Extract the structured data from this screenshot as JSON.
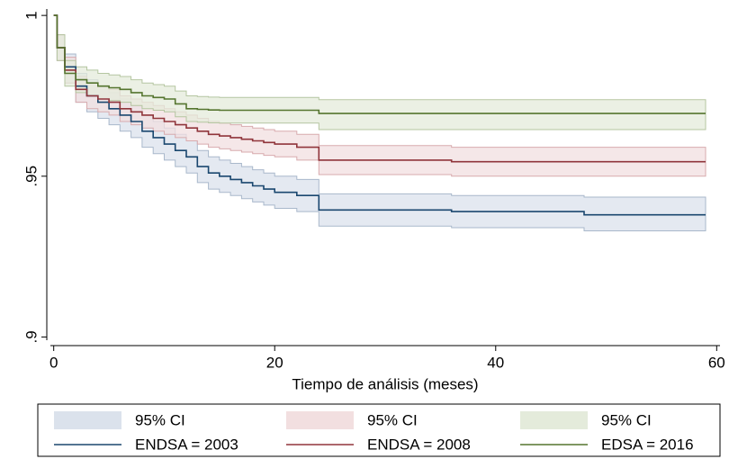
{
  "chart_data": {
    "type": "survival",
    "x_label": "Tiempo de análisis (meses)",
    "x": [
      0,
      0.3,
      1,
      2,
      3,
      4,
      5,
      6,
      7,
      8,
      9,
      10,
      11,
      12,
      13,
      14,
      15,
      16,
      17,
      18,
      19,
      20,
      22,
      24,
      36,
      48,
      59
    ],
    "xlim": [
      -0.3,
      60.3
    ],
    "xticks": [
      0,
      20,
      40,
      60
    ],
    "ylim": [
      0.899,
      1.002
    ],
    "yticks": [
      {
        "value": 0.9,
        "label": ".9"
      },
      {
        "value": 0.95,
        "label": ".95"
      },
      1
    ],
    "series": [
      {
        "name": "ENDSA = 2003",
        "color": "#1a476f",
        "ci_color": "#dbe2ec",
        "ci_edge": "#a9b8cb",
        "values": [
          1,
          0.99,
          0.984,
          0.978,
          0.975,
          0.973,
          0.971,
          0.969,
          0.967,
          0.964,
          0.962,
          0.96,
          0.958,
          0.956,
          0.953,
          0.951,
          0.95,
          0.949,
          0.948,
          0.947,
          0.946,
          0.945,
          0.944,
          0.9395,
          0.939,
          0.938,
          0.938
        ],
        "ci": {
          "name": "95% CI",
          "upper": [
            1,
            0.994,
            0.988,
            0.982,
            0.98,
            0.978,
            0.976,
            0.974,
            0.972,
            0.969,
            0.967,
            0.965,
            0.963,
            0.961,
            0.958,
            0.956,
            0.955,
            0.954,
            0.953,
            0.952,
            0.951,
            0.95,
            0.949,
            0.9445,
            0.944,
            0.9435,
            0.9435
          ],
          "lower": [
            1,
            0.986,
            0.979,
            0.973,
            0.97,
            0.968,
            0.966,
            0.964,
            0.962,
            0.959,
            0.957,
            0.955,
            0.953,
            0.951,
            0.948,
            0.946,
            0.945,
            0.944,
            0.943,
            0.942,
            0.941,
            0.94,
            0.939,
            0.9345,
            0.934,
            0.933,
            0.933
          ]
        }
      },
      {
        "name": "ENDSA = 2008",
        "color": "#90353b",
        "ci_color": "#f2dfe0",
        "ci_edge": "#d8abae",
        "values": [
          1,
          0.99,
          0.983,
          0.977,
          0.975,
          0.974,
          0.973,
          0.971,
          0.97,
          0.969,
          0.968,
          0.967,
          0.966,
          0.965,
          0.964,
          0.963,
          0.9625,
          0.962,
          0.9615,
          0.961,
          0.9605,
          0.96,
          0.959,
          0.955,
          0.9545,
          0.9545,
          0.9545
        ],
        "ci": {
          "name": "95% CI",
          "upper": [
            1,
            0.994,
            0.987,
            0.981,
            0.979,
            0.978,
            0.977,
            0.975,
            0.974,
            0.973,
            0.972,
            0.971,
            0.97,
            0.969,
            0.968,
            0.967,
            0.9665,
            0.966,
            0.9655,
            0.965,
            0.9645,
            0.964,
            0.963,
            0.9595,
            0.959,
            0.959,
            0.959
          ],
          "lower": [
            1,
            0.986,
            0.979,
            0.973,
            0.971,
            0.97,
            0.969,
            0.967,
            0.966,
            0.965,
            0.964,
            0.963,
            0.962,
            0.961,
            0.96,
            0.959,
            0.9585,
            0.958,
            0.9575,
            0.957,
            0.9565,
            0.956,
            0.955,
            0.9505,
            0.95,
            0.95,
            0.95
          ]
        }
      },
      {
        "name": "EDSA = 2016",
        "color": "#55752f",
        "ci_color": "#e4ebdb",
        "ci_edge": "#b5c6a1",
        "values": [
          1,
          0.99,
          0.982,
          0.98,
          0.979,
          0.978,
          0.9775,
          0.977,
          0.976,
          0.975,
          0.9745,
          0.974,
          0.9725,
          0.971,
          0.9708,
          0.9706,
          0.9705,
          0.9705,
          0.9705,
          0.9705,
          0.9705,
          0.9705,
          0.9705,
          0.9695,
          0.9695,
          0.9695,
          0.9695
        ],
        "ci": {
          "name": "95% CI",
          "upper": [
            1,
            0.994,
            0.986,
            0.984,
            0.983,
            0.982,
            0.9815,
            0.981,
            0.98,
            0.979,
            0.9785,
            0.978,
            0.9765,
            0.975,
            0.9748,
            0.9746,
            0.9745,
            0.9745,
            0.9745,
            0.9745,
            0.9745,
            0.9745,
            0.9745,
            0.9738,
            0.9738,
            0.9738,
            0.9738
          ],
          "lower": [
            1,
            0.986,
            0.978,
            0.976,
            0.975,
            0.974,
            0.9735,
            0.973,
            0.972,
            0.971,
            0.9705,
            0.97,
            0.9685,
            0.967,
            0.9668,
            0.9666,
            0.9665,
            0.9665,
            0.9665,
            0.9665,
            0.9665,
            0.9665,
            0.9665,
            0.9645,
            0.9645,
            0.9645,
            0.9645
          ]
        }
      }
    ]
  }
}
